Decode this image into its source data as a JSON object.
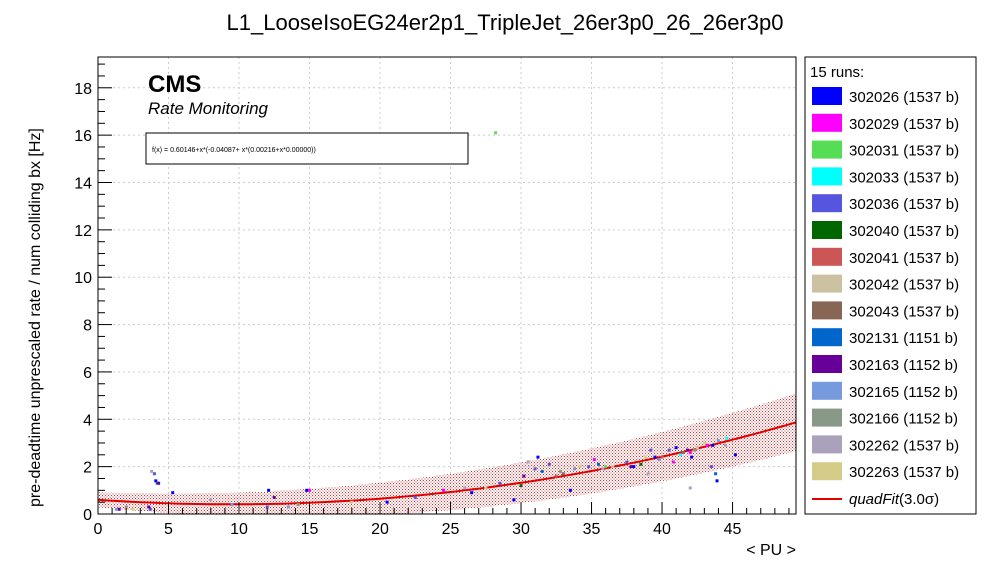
{
  "chart_data": {
    "type": "scatter",
    "title": "L1_LooseIsoEG24er2p1_TripleJet_26er3p0_26_26er3p0",
    "xlabel": "< PU >",
    "ylabel": "pre-deadtime unprescaled rate / num colliding bx [Hz]",
    "xlim": [
      0,
      49.5
    ],
    "ylim": [
      0,
      19.3
    ],
    "xticks": [
      0,
      5,
      10,
      15,
      20,
      25,
      30,
      35,
      40,
      45
    ],
    "yticks": [
      0,
      2,
      4,
      6,
      8,
      10,
      12,
      14,
      16,
      18
    ],
    "grid": true,
    "legend_position": "right-outside",
    "legend_header": "15 runs:",
    "cms_label": "CMS",
    "cms_sublabel": "Rate Monitoring",
    "fit_text": "f(x) = 0.60146+x*(-0.04087+ x*(0.00216+x*0.00000))",
    "fit": {
      "name": "quadFit",
      "label_suffix": "(3.0σ)",
      "color": "#e00000",
      "coefficients": [
        0.60146,
        -0.04087,
        0.00216,
        0.0
      ],
      "band_sigma": 0.3
    },
    "series": [
      {
        "name": "302026 (1537 b)",
        "color": "#0000ff",
        "points": [
          [
            4.1,
            1.4
          ],
          [
            5.3,
            0.9
          ],
          [
            12.1,
            1.0
          ],
          [
            14.8,
            1.0
          ],
          [
            20.5,
            0.5
          ],
          [
            26.5,
            0.9
          ],
          [
            29.5,
            0.6
          ],
          [
            31.2,
            2.4
          ],
          [
            33.5,
            1.0
          ],
          [
            38,
            2.0
          ],
          [
            39.5,
            2.4
          ],
          [
            41,
            2.8
          ],
          [
            42.1,
            2.4
          ],
          [
            43.6,
            2.9
          ],
          [
            43.9,
            1.4
          ],
          [
            45.2,
            2.5
          ]
        ]
      },
      {
        "name": "302029 (1537 b)",
        "color": "#ff00ff",
        "points": [
          [
            15,
            1.0
          ],
          [
            24.5,
            1.0
          ],
          [
            35.2,
            2.3
          ],
          [
            40.8,
            2.2
          ],
          [
            42,
            2.6
          ],
          [
            43.2,
            2.9
          ]
        ]
      },
      {
        "name": "302031 (1537 b)",
        "color": "#55dd55",
        "points": [
          [
            28.2,
            16.1
          ],
          [
            36,
            2.0
          ]
        ]
      },
      {
        "name": "302033 (1537 b)",
        "color": "#00ffff",
        "points": [
          [
            41.3,
            2.5
          ],
          [
            44.6,
            3.2
          ]
        ]
      },
      {
        "name": "302036 (1537 b)",
        "color": "#5555dd",
        "points": [
          [
            3.7,
            0.2
          ],
          [
            4.0,
            1.7
          ],
          [
            12,
            0.3
          ],
          [
            22.5,
            0.7
          ],
          [
            28.5,
            1.3
          ],
          [
            31,
            1.9
          ],
          [
            32,
            2.1
          ],
          [
            34.8,
            2.0
          ],
          [
            37.5,
            2.2
          ],
          [
            39.2,
            2.7
          ],
          [
            40.5,
            2.7
          ],
          [
            43.5,
            2.0
          ]
        ]
      },
      {
        "name": "302040 (1537 b)",
        "color": "#006600",
        "points": [
          [
            30,
            1.2
          ],
          [
            38.5,
            2.1
          ]
        ]
      },
      {
        "name": "302041 (1537 b)",
        "color": "#cc5555",
        "points": [
          [
            32.5,
            1.6
          ],
          [
            40,
            2.4
          ]
        ]
      },
      {
        "name": "302042 (1537 b)",
        "color": "#ccc2a2",
        "points": [
          [
            36.5,
            2.0
          ],
          [
            42.5,
            2.8
          ]
        ]
      },
      {
        "name": "302043 (1537 b)",
        "color": "#886655",
        "points": [
          [
            33,
            1.7
          ],
          [
            41.5,
            2.6
          ]
        ]
      },
      {
        "name": "302131 (1151 b)",
        "color": "#0066cc",
        "points": [
          [
            4.2,
            1.3
          ],
          [
            31.5,
            1.8
          ],
          [
            35.5,
            2.1
          ],
          [
            43.8,
            1.7
          ]
        ]
      },
      {
        "name": "302163 (1152 b)",
        "color": "#660099",
        "points": [
          [
            1.5,
            0.2
          ],
          [
            3.6,
            0.3
          ],
          [
            4.3,
            1.3
          ],
          [
            12.5,
            0.7
          ],
          [
            30.2,
            1.6
          ],
          [
            37.8,
            2.0
          ],
          [
            41.8,
            2.7
          ]
        ]
      },
      {
        "name": "302165 (1152 b)",
        "color": "#7799dd",
        "points": [
          [
            1.3,
            0.2
          ],
          [
            9.5,
            0.4
          ],
          [
            13.5,
            0.3
          ],
          [
            33.8,
            1.9
          ],
          [
            39.8,
            2.3
          ],
          [
            44,
            3.1
          ]
        ]
      },
      {
        "name": "302166 (1152 b)",
        "color": "#889988",
        "points": [
          [
            2,
            0.3
          ],
          [
            14.2,
            0.4
          ],
          [
            32.8,
            1.8
          ],
          [
            42.3,
            2.7
          ]
        ]
      },
      {
        "name": "302262 (1537 b)",
        "color": "#aaa2bb",
        "points": [
          [
            3.8,
            1.8
          ],
          [
            8,
            0.6
          ],
          [
            26,
            1.1
          ],
          [
            30.5,
            2.2
          ],
          [
            35.8,
            1.9
          ],
          [
            39,
            1.7
          ],
          [
            42,
            1.1
          ],
          [
            44.5,
            2.9
          ]
        ]
      },
      {
        "name": "302263 (1537 b)",
        "color": "#d4cc88",
        "points": [
          [
            2.5,
            0.2
          ],
          [
            18,
            0.5
          ],
          [
            27.5,
            1.1
          ],
          [
            34.2,
            2.0
          ],
          [
            38.8,
            2.4
          ],
          [
            43,
            3.0
          ]
        ]
      }
    ]
  }
}
